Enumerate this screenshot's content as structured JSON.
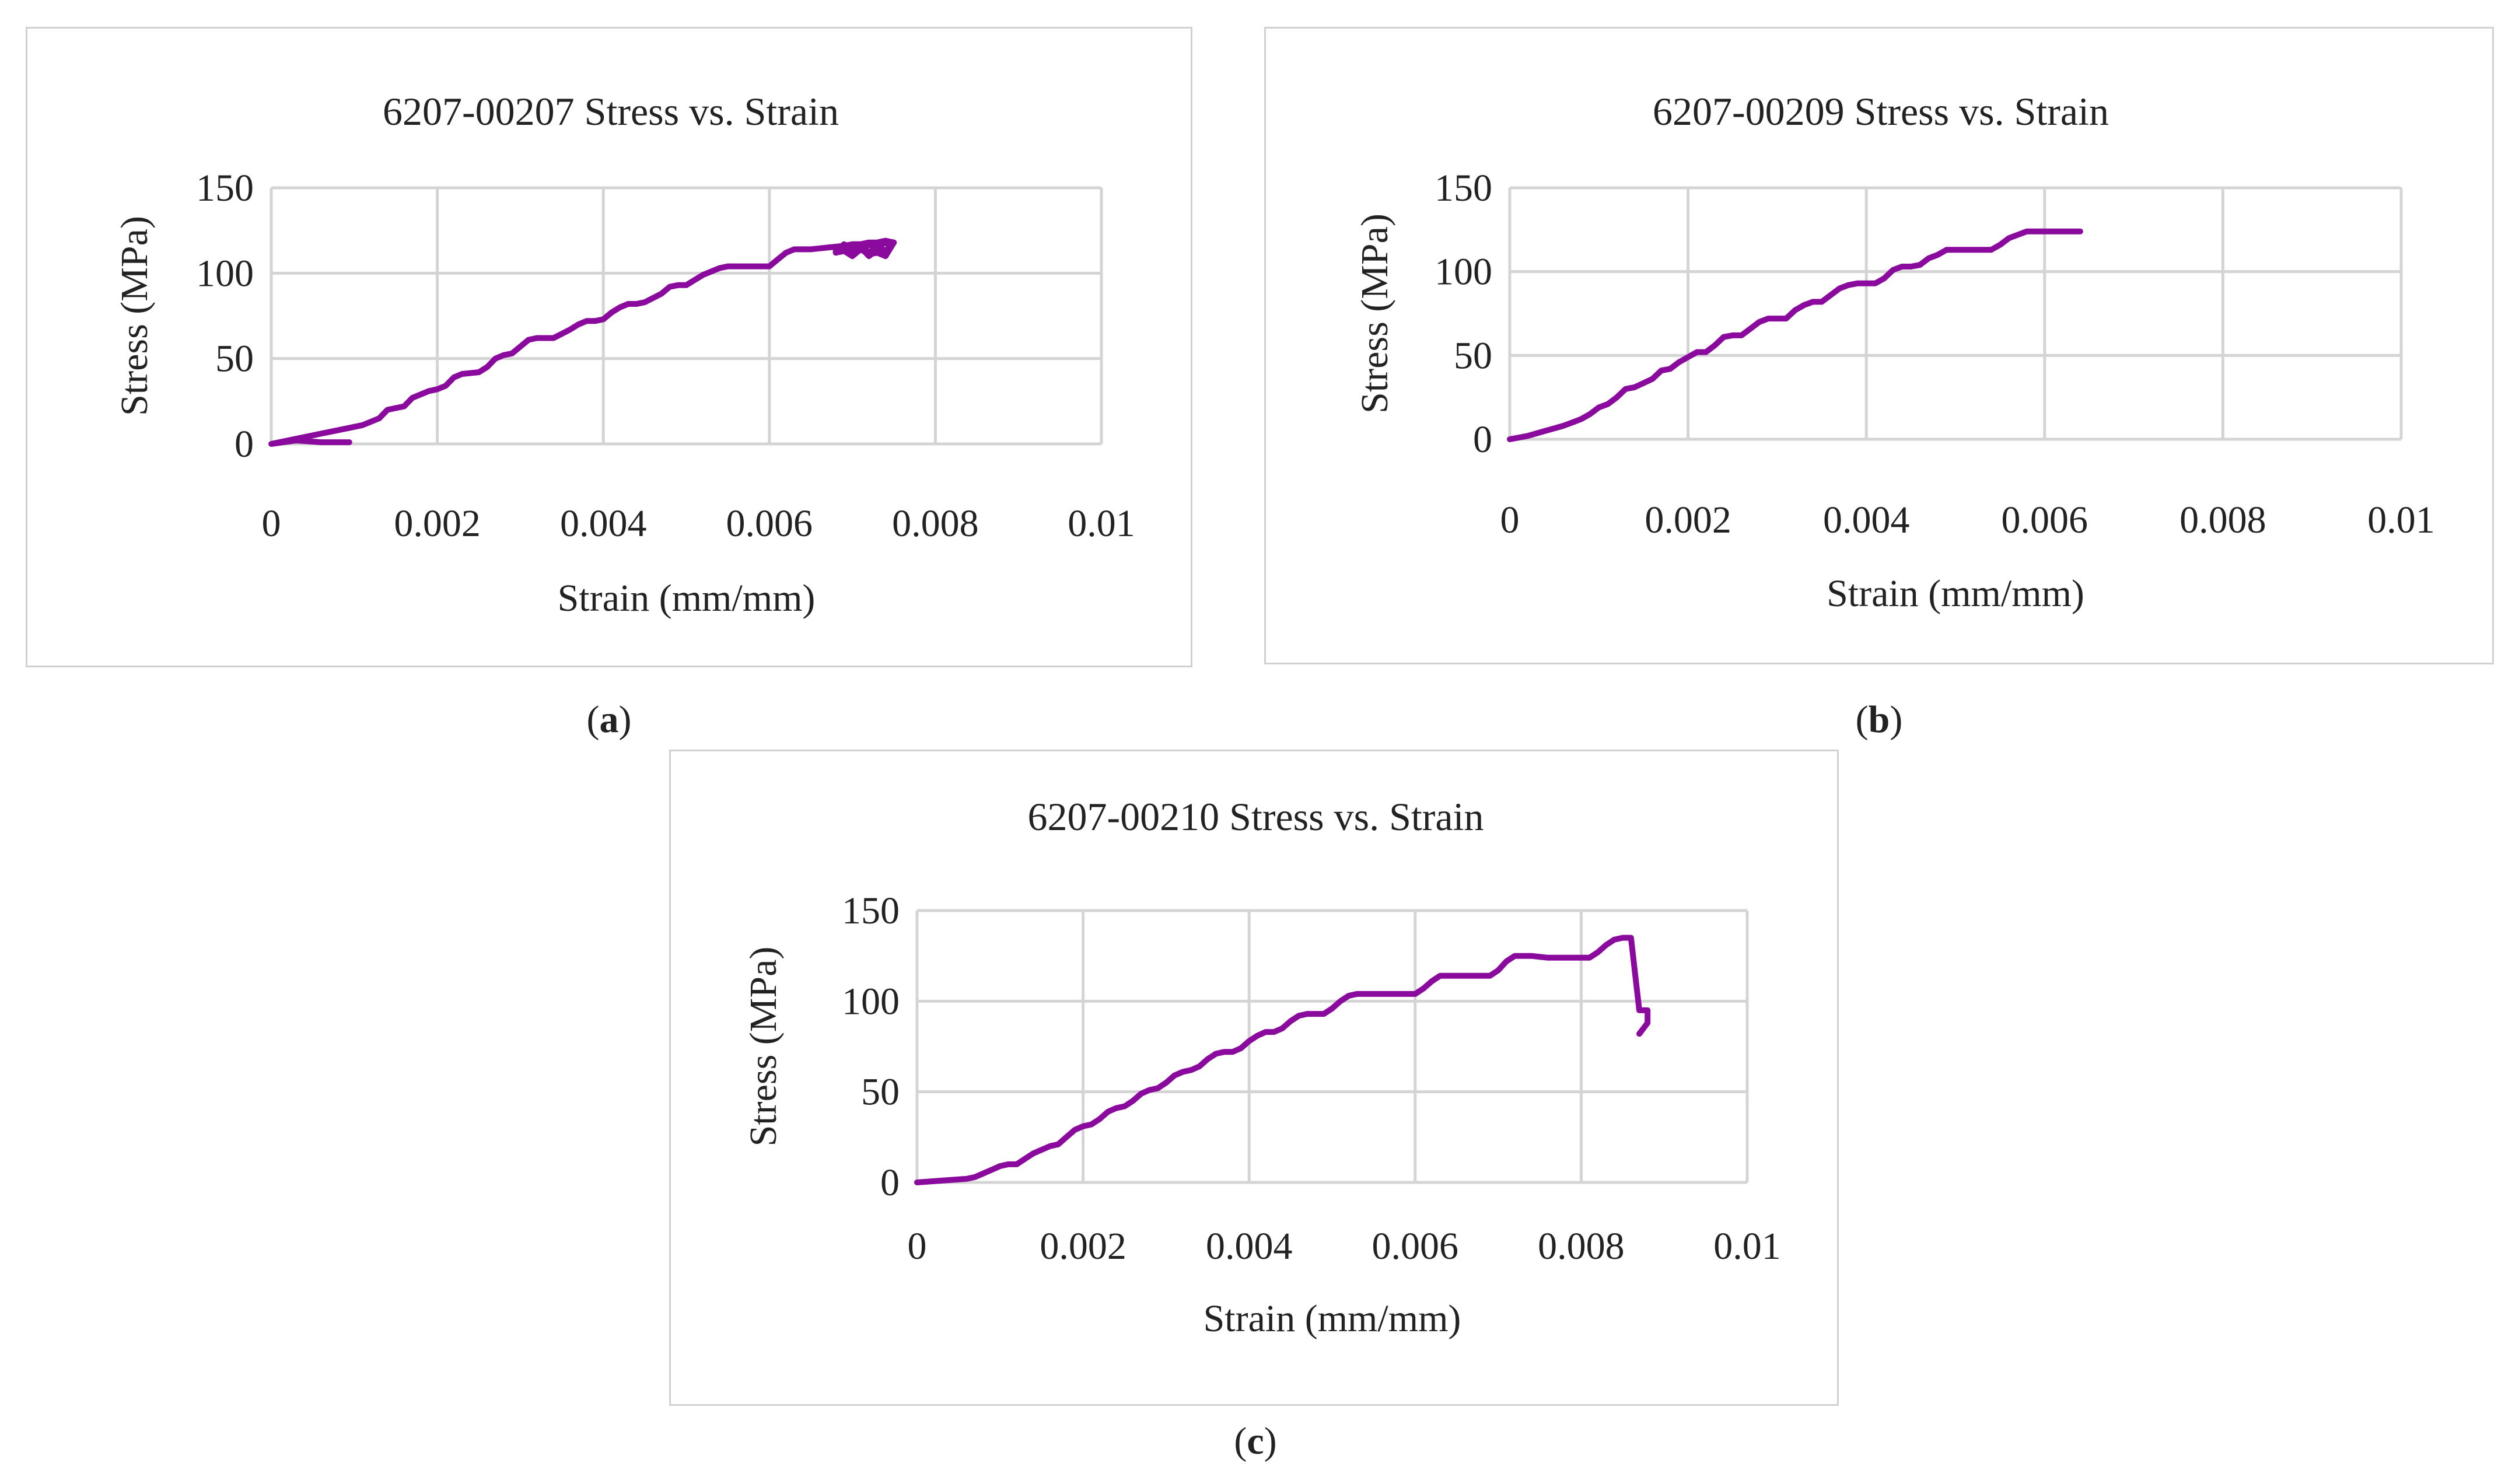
{
  "figure": {
    "captions": [
      "a",
      "b",
      "c"
    ]
  },
  "chart_data": [
    {
      "type": "line",
      "title": "6207-00207 Stress vs. Strain",
      "xlabel": "Strain (mm/mm)",
      "ylabel": "Stress (MPa)",
      "xlim": [
        0,
        0.01
      ],
      "ylim": [
        0,
        150
      ],
      "xticks": [
        "0",
        "0.002",
        "0.004",
        "0.006",
        "0.008",
        "0.01"
      ],
      "yticks": [
        "0",
        "50",
        "100",
        "150"
      ],
      "grid": true,
      "color": "#8b0a9e",
      "series": [
        {
          "name": "6207-00207",
          "x": [
            0.00094,
            0.0006,
            0.0003,
            0.0,
            0.0003,
            0.0006,
            0.0009,
            0.0011,
            0.0013,
            0.0014,
            0.0016,
            0.0017,
            0.0019,
            0.002,
            0.0021,
            0.0022,
            0.0023,
            0.0025,
            0.0026,
            0.0027,
            0.0028,
            0.0029,
            0.003,
            0.0031,
            0.0032,
            0.0033,
            0.0034,
            0.0036,
            0.0037,
            0.0038,
            0.0039,
            0.004,
            0.0041,
            0.0042,
            0.0043,
            0.0044,
            0.0045,
            0.0047,
            0.0048,
            0.0049,
            0.005,
            0.0051,
            0.0052,
            0.0054,
            0.0055,
            0.0056,
            0.0058,
            0.006,
            0.0061,
            0.0062,
            0.0063,
            0.0065,
            0.0067,
            0.0069,
            0.007,
            0.0071,
            0.0072,
            0.0073,
            0.0074,
            0.0075,
            0.0074,
            0.0073,
            0.0072,
            0.0071,
            0.007,
            0.0069,
            0.0068,
            0.0069,
            0.007,
            0.0071,
            0.0072,
            0.0073,
            0.0074,
            0.0075,
            0.0074,
            0.0073,
            0.0072,
            0.0071,
            0.007,
            0.0069,
            0.0068,
            0.0069,
            0.0071,
            0.0073,
            0.0075
          ],
          "y": [
            1,
            1,
            2,
            0,
            3,
            6,
            9,
            11,
            15,
            20,
            22,
            27,
            31,
            32,
            34,
            39,
            41,
            42,
            45,
            50,
            52,
            53,
            57,
            61,
            62,
            62,
            62,
            67,
            70,
            72,
            72,
            73,
            77,
            80,
            82,
            82,
            83,
            88,
            92,
            93,
            93,
            96,
            99,
            103,
            104,
            104,
            104,
            104,
            108,
            112,
            114,
            114,
            115,
            116,
            117,
            117,
            118,
            118,
            119,
            118,
            110,
            112,
            111,
            114,
            110,
            113,
            112,
            116,
            111,
            117,
            112,
            116,
            113,
            118,
            111,
            114,
            110,
            115,
            112,
            117,
            113,
            114,
            116,
            117,
            118
          ]
        }
      ]
    },
    {
      "type": "line",
      "title": "6207-00209 Stress vs. Strain",
      "xlabel": "Strain (mm/mm)",
      "ylabel": "Stress (MPa)",
      "xlim": [
        0,
        0.01
      ],
      "ylim": [
        0,
        150
      ],
      "xticks": [
        "0",
        "0.002",
        "0.004",
        "0.006",
        "0.008",
        "0.01"
      ],
      "yticks": [
        "0",
        "50",
        "100",
        "150"
      ],
      "grid": true,
      "color": "#8b0a9e",
      "series": [
        {
          "name": "6207-00209",
          "x": [
            0.0,
            0.0002,
            0.0004,
            0.0006,
            0.0007,
            0.0008,
            0.0009,
            0.001,
            0.0011,
            0.0012,
            0.0013,
            0.0014,
            0.0016,
            0.0017,
            0.0018,
            0.0019,
            0.002,
            0.0021,
            0.0022,
            0.0023,
            0.0024,
            0.0025,
            0.0026,
            0.0027,
            0.0028,
            0.0029,
            0.003,
            0.0031,
            0.0032,
            0.0033,
            0.0034,
            0.0035,
            0.0036,
            0.0037,
            0.0038,
            0.0039,
            0.004,
            0.0041,
            0.0042,
            0.0043,
            0.0044,
            0.0045,
            0.0046,
            0.0047,
            0.0048,
            0.0049,
            0.005,
            0.0051,
            0.0052,
            0.0053,
            0.0054,
            0.0055,
            0.0056,
            0.0057,
            0.0058,
            0.0059,
            0.006,
            0.0061,
            0.0062,
            0.0064
          ],
          "y": [
            0,
            2,
            5,
            8,
            10,
            12,
            15,
            19,
            21,
            25,
            30,
            31,
            36,
            41,
            42,
            46,
            49,
            52,
            52,
            56,
            61,
            62,
            62,
            66,
            70,
            72,
            72,
            72,
            77,
            80,
            82,
            82,
            86,
            90,
            92,
            93,
            93,
            93,
            96,
            101,
            103,
            103,
            104,
            108,
            110,
            113,
            113,
            113,
            113,
            113,
            113,
            116,
            120,
            122,
            124,
            124,
            124,
            124,
            124,
            124
          ]
        }
      ]
    },
    {
      "type": "line",
      "title": "6207-00210 Stress vs. Strain",
      "xlabel": "Strain (mm/mm)",
      "ylabel": "Stress (MPa)",
      "xlim": [
        0,
        0.01
      ],
      "ylim": [
        0,
        150
      ],
      "xticks": [
        "0",
        "0.002",
        "0.004",
        "0.006",
        "0.008",
        "0.01"
      ],
      "yticks": [
        "0",
        "50",
        "100",
        "150"
      ],
      "grid": true,
      "color": "#8b0a9e",
      "series": [
        {
          "name": "6207-00210",
          "x": [
            0.0,
            0.0003,
            0.0006,
            0.0007,
            0.0008,
            0.0009,
            0.001,
            0.0011,
            0.0012,
            0.0013,
            0.0014,
            0.0015,
            0.0016,
            0.0017,
            0.0018,
            0.0019,
            0.002,
            0.0021,
            0.0022,
            0.0023,
            0.0024,
            0.0025,
            0.0026,
            0.0027,
            0.0028,
            0.0029,
            0.003,
            0.0031,
            0.0032,
            0.0033,
            0.0034,
            0.0035,
            0.0036,
            0.0037,
            0.0038,
            0.0039,
            0.004,
            0.0041,
            0.0042,
            0.0043,
            0.0044,
            0.0045,
            0.0046,
            0.0047,
            0.0048,
            0.0049,
            0.005,
            0.0051,
            0.0052,
            0.0053,
            0.0054,
            0.0055,
            0.0056,
            0.0058,
            0.006,
            0.0061,
            0.0062,
            0.0063,
            0.0064,
            0.0066,
            0.0068,
            0.0069,
            0.007,
            0.0071,
            0.0072,
            0.0074,
            0.0076,
            0.0078,
            0.008,
            0.0081,
            0.0082,
            0.0083,
            0.0084,
            0.0085,
            0.00855,
            0.0086,
            0.0087,
            0.0088,
            0.0088,
            0.0087
          ],
          "y": [
            0,
            1,
            2,
            3,
            5,
            7,
            9,
            10,
            10,
            13,
            16,
            18,
            20,
            21,
            25,
            29,
            31,
            32,
            35,
            39,
            41,
            42,
            45,
            49,
            51,
            52,
            55,
            59,
            61,
            62,
            64,
            68,
            71,
            72,
            72,
            74,
            78,
            81,
            83,
            83,
            85,
            89,
            92,
            93,
            93,
            93,
            96,
            100,
            103,
            104,
            104,
            104,
            104,
            104,
            104,
            107,
            111,
            114,
            114,
            114,
            114,
            114,
            117,
            122,
            125,
            125,
            124,
            124,
            124,
            124,
            127,
            131,
            134,
            135,
            135,
            135,
            95,
            95,
            88,
            82
          ]
        }
      ]
    }
  ]
}
